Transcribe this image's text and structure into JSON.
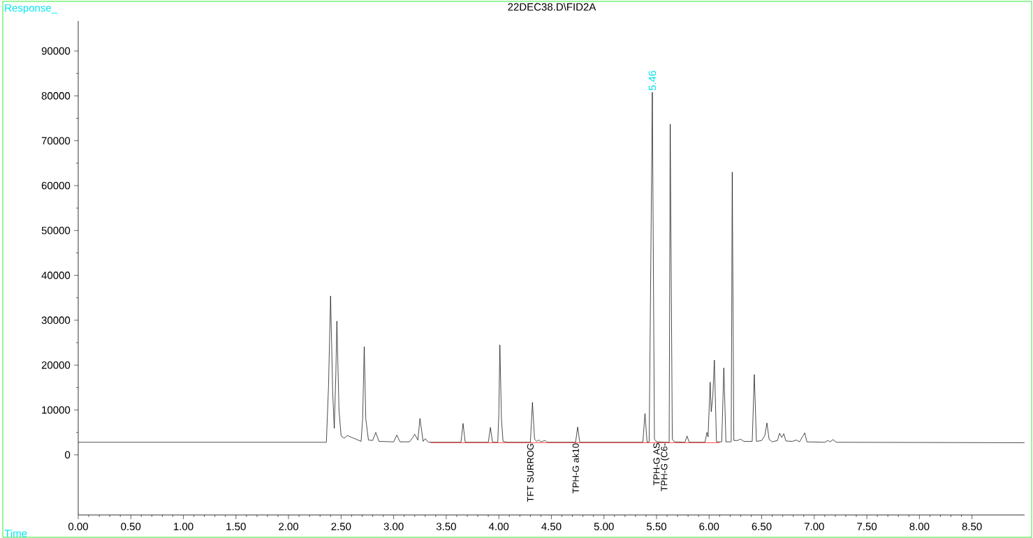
{
  "chart_data": {
    "type": "line",
    "title": "22DEC38.D\\FID2A",
    "xlabel": "Time",
    "ylabel": "Response_",
    "xlim": [
      0,
      9.0
    ],
    "ylim": [
      -13400,
      96700
    ],
    "xticks": [
      {
        "value": 0,
        "label": "0.00"
      },
      {
        "value": 0.5,
        "label": "0.50"
      },
      {
        "value": 1,
        "label": "1.00"
      },
      {
        "value": 1.5,
        "label": "1.50"
      },
      {
        "value": 2,
        "label": "2.00"
      },
      {
        "value": 2.5,
        "label": "2.50"
      },
      {
        "value": 3,
        "label": "3.00"
      },
      {
        "value": 3.5,
        "label": "3.50"
      },
      {
        "value": 4,
        "label": "4.00"
      },
      {
        "value": 4.5,
        "label": "4.50"
      },
      {
        "value": 5,
        "label": "5.00"
      },
      {
        "value": 5.5,
        "label": "5.50"
      },
      {
        "value": 6,
        "label": "6.00"
      },
      {
        "value": 6.5,
        "label": "6.50"
      },
      {
        "value": 7,
        "label": "7.00"
      },
      {
        "value": 7.5,
        "label": "7.50"
      },
      {
        "value": 8,
        "label": "8.00"
      },
      {
        "value": 8.5,
        "label": "8.50"
      }
    ],
    "yticks": [
      0,
      10000,
      20000,
      30000,
      40000,
      50000,
      60000,
      70000,
      80000,
      90000
    ],
    "grid": false,
    "annotations": [
      {
        "text": "5.46",
        "x": 5.46,
        "y": 80800
      },
      {
        "text": "TFT SURROG",
        "x": 4.3,
        "y": 2800
      },
      {
        "text": "TPH-G ak10",
        "x": 4.73,
        "y": 2800
      },
      {
        "text": "TPH-G AS",
        "x": 5.5,
        "y": 2900
      },
      {
        "text": "TPH-G (C6-",
        "x": 5.58,
        "y": 2800
      }
    ],
    "series": [
      {
        "color": "#000000",
        "x": [
          0,
          2.36,
          2.38,
          2.4,
          2.42,
          2.435,
          2.45,
          2.46,
          2.48,
          2.5,
          2.53,
          2.56,
          2.6,
          2.66,
          2.69,
          2.705,
          2.72,
          2.735,
          2.76,
          2.8,
          2.83,
          2.86,
          3.0,
          3.03,
          3.06,
          3.15,
          3.18,
          3.2,
          3.23,
          3.25,
          3.28,
          3.3,
          3.33,
          3.64,
          3.66,
          3.68,
          3.9,
          3.92,
          3.94,
          3.99,
          4.0,
          4.01,
          4.025,
          4.04,
          4.08,
          4.3,
          4.32,
          4.34,
          4.36,
          4.38,
          4.4,
          4.44,
          4.46,
          4.73,
          4.75,
          4.77,
          5.37,
          5.39,
          5.41,
          5.43,
          5.46,
          5.48,
          5.5,
          5.58,
          5.62,
          5.63,
          5.65,
          5.67,
          5.77,
          5.79,
          5.81,
          5.96,
          5.98,
          5.99,
          6.01,
          6.02,
          6.035,
          6.05,
          6.07,
          6.12,
          6.14,
          6.16,
          6.21,
          6.22,
          6.235,
          6.27,
          6.3,
          6.33,
          6.41,
          6.43,
          6.45,
          6.5,
          6.53,
          6.55,
          6.57,
          6.6,
          6.65,
          6.67,
          6.69,
          6.71,
          6.73,
          6.79,
          6.83,
          6.86,
          6.89,
          6.91,
          6.93,
          7.1,
          7.13,
          7.15,
          7.18,
          7.21,
          9.0
        ],
        "values": [
          2800,
          2800,
          15000,
          35400,
          14000,
          5900,
          18000,
          29800,
          10000,
          4200,
          3700,
          4300,
          3900,
          3300,
          3000,
          8000,
          24100,
          8000,
          3300,
          3200,
          5000,
          3000,
          2900,
          4400,
          2900,
          2900,
          3800,
          4600,
          3300,
          8100,
          3000,
          3600,
          2800,
          2800,
          7000,
          2800,
          2800,
          6100,
          2800,
          2800,
          9000,
          24500,
          8000,
          3000,
          2800,
          2800,
          11700,
          3500,
          3000,
          3300,
          2900,
          3200,
          2800,
          2800,
          6200,
          2800,
          2800,
          9200,
          2800,
          2900,
          80800,
          3500,
          2900,
          2800,
          2800,
          73700,
          3500,
          2900,
          2800,
          4200,
          2800,
          2800,
          5000,
          4000,
          16200,
          9600,
          13000,
          21100,
          2900,
          2900,
          19400,
          2900,
          2900,
          63000,
          3200,
          3200,
          3500,
          3000,
          3000,
          17900,
          3000,
          3200,
          4300,
          7100,
          3500,
          2900,
          3200,
          4800,
          3900,
          4700,
          3100,
          3000,
          3300,
          2900,
          4100,
          4900,
          2900,
          2800,
          3200,
          2900,
          3400,
          2800,
          2700
        ]
      },
      {
        "color": "#ff0000",
        "x": [
          3.35,
          6.1
        ],
        "values": [
          2700,
          2700
        ]
      }
    ]
  }
}
